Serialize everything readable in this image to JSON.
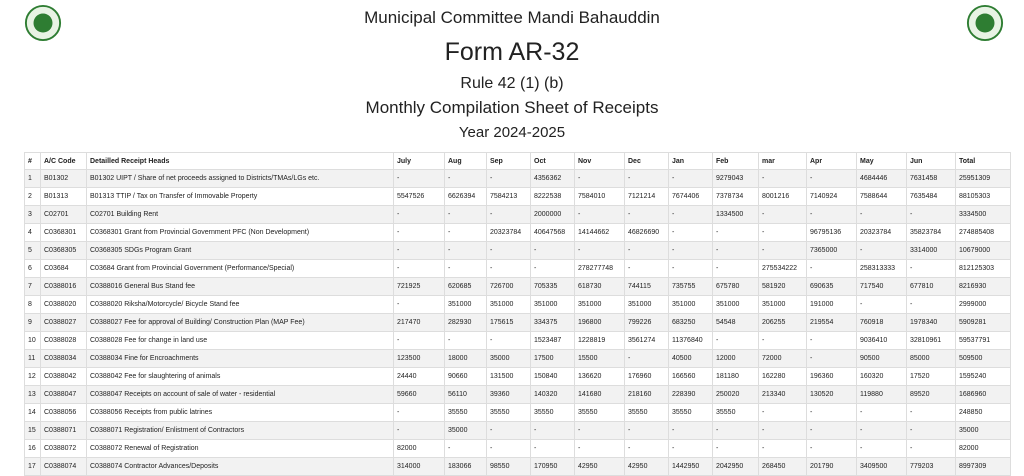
{
  "header": {
    "organization": "Municipal Committee Mandi Bahauddin",
    "form": "Form AR-32",
    "rule": "Rule 42 (1) (b)",
    "title": "Monthly Compilation Sheet of Receipts",
    "year": "Year 2024-2025"
  },
  "table": {
    "columns": [
      "#",
      "A/C Code",
      "Detailled Receipt Heads",
      "July",
      "Aug",
      "Sep",
      "Oct",
      "Nov",
      "Dec",
      "Jan",
      "Feb",
      "mar",
      "Apr",
      "May",
      "Jun",
      "Total"
    ],
    "rows": [
      [
        1,
        "B01302",
        "B01302 UIPT / Share of net proceeds assigned to Districts/TMAs/LGs etc.",
        "-",
        "-",
        "-",
        4356362,
        "-",
        "-",
        "-",
        9279043,
        "-",
        "-",
        4684446,
        7631458,
        25951309
      ],
      [
        2,
        "B01313",
        "B01313 TTIP / Tax on Transfer of Immovable Property",
        5547526,
        6626394,
        7584213,
        8222538,
        7584010,
        7121214,
        7674406,
        7378734,
        8001216,
        7140924,
        7588644,
        7635484,
        88105303
      ],
      [
        3,
        "C02701",
        "C02701 Building Rent",
        "-",
        "-",
        "-",
        2000000,
        "-",
        "-",
        "-",
        1334500,
        "-",
        "-",
        "-",
        "-",
        3334500
      ],
      [
        4,
        "C0368301",
        "C0368301 Grant from Provincial Government PFC (Non Development)",
        "-",
        "-",
        20323784,
        40647568,
        14144662,
        46826690,
        "-",
        "-",
        "-",
        96795136,
        20323784,
        35823784,
        274885408
      ],
      [
        5,
        "C0368305",
        "C0368305 SDGs Program Grant",
        "-",
        "-",
        "-",
        "-",
        "-",
        "-",
        "-",
        "-",
        "-",
        7365000,
        "-",
        3314000,
        10679000
      ],
      [
        6,
        "C03684",
        "C03684 Grant from Provincial Government (Performance/Special)",
        "-",
        "-",
        "-",
        "-",
        278277748,
        "-",
        "-",
        "-",
        275534222,
        "-",
        258313333,
        "-",
        812125303
      ],
      [
        7,
        "C0388016",
        "C0388016 General Bus Stand fee",
        721925,
        620685,
        726700,
        705335,
        618730,
        744115,
        735755,
        675780,
        581920,
        690635,
        717540,
        677810,
        8216930
      ],
      [
        8,
        "C0388020",
        "C0388020 Riksha/Motorcycle/ Bicycle Stand fee",
        "-",
        351000,
        351000,
        351000,
        351000,
        351000,
        351000,
        351000,
        351000,
        191000,
        "-",
        "-",
        2999000
      ],
      [
        9,
        "C0388027",
        "C0388027 Fee for approval of Building/ Construction Plan (MAP Fee)",
        217470,
        282930,
        175615,
        334375,
        196800,
        799226,
        683250,
        54548,
        206255,
        219554,
        760918,
        1978340,
        5909281
      ],
      [
        10,
        "C0388028",
        "C0388028 Fee for change in land use",
        "-",
        "-",
        "-",
        1523487,
        1228819,
        3561274,
        11376840,
        "-",
        "-",
        "-",
        9036410,
        32810961,
        59537791
      ],
      [
        11,
        "C0388034",
        "C0388034 Fine for Encroachments",
        123500,
        18000,
        35000,
        17500,
        15500,
        "-",
        40500,
        12000,
        72000,
        "-",
        90500,
        85000,
        509500
      ],
      [
        12,
        "C0388042",
        "C0388042 Fee for slaughtering of animals",
        24440,
        90660,
        131500,
        150840,
        136620,
        176960,
        166560,
        181180,
        162280,
        196360,
        160320,
        17520,
        1595240
      ],
      [
        13,
        "C0388047",
        "C0388047 Receipts on account of sale of water - residential",
        59660,
        56110,
        39360,
        140320,
        141680,
        218160,
        228390,
        250020,
        213340,
        130520,
        119880,
        89520,
        1686960
      ],
      [
        14,
        "C0388056",
        "C0388056 Receipts from public latrines",
        "-",
        35550,
        35550,
        35550,
        35550,
        35550,
        35550,
        35550,
        "-",
        "-",
        "-",
        "-",
        248850
      ],
      [
        15,
        "C0388071",
        "C0388071 Registration/ Enlistment of Contractors",
        "-",
        35000,
        "-",
        "-",
        "-",
        "-",
        "-",
        "-",
        "-",
        "-",
        "-",
        "-",
        35000
      ],
      [
        16,
        "C0388072",
        "C0388072 Renewal of Registration",
        82000,
        "-",
        "-",
        "-",
        "-",
        "-",
        "-",
        "-",
        "-",
        "-",
        "-",
        "-",
        82000
      ],
      [
        17,
        "C0388074",
        "C0388074 Contractor Advances/Deposits",
        314000,
        183066,
        98550,
        170950,
        42950,
        42950,
        1442950,
        2042950,
        268450,
        201790,
        3409500,
        779203,
        8997309
      ]
    ]
  }
}
